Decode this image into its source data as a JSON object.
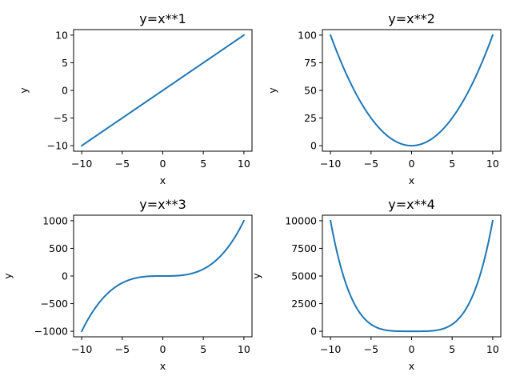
{
  "chart_data": [
    {
      "type": "line",
      "title": "y=x**1",
      "xlabel": "x",
      "ylabel": "y",
      "exponent": 1,
      "x_range": [
        -10,
        10
      ],
      "xlim": [
        -11,
        11
      ],
      "ylim": [
        -11,
        11
      ],
      "xticks": [
        -10,
        -5,
        0,
        5,
        10
      ],
      "xtick_labels": [
        "−10",
        "−5",
        "0",
        "5",
        "10"
      ],
      "yticks": [
        -10,
        -5,
        0,
        5,
        10
      ],
      "ytick_labels": [
        "−10",
        "−5",
        "0",
        "5",
        "10"
      ],
      "series": [
        {
          "color": "#1f77b4",
          "x": [
            -10,
            10
          ],
          "y": [
            -10,
            10
          ]
        }
      ],
      "grid": false,
      "legend": "none"
    },
    {
      "type": "line",
      "title": "y=x**2",
      "xlabel": "x",
      "ylabel": "y",
      "exponent": 2,
      "x_range": [
        -10,
        10
      ],
      "xlim": [
        -11,
        11
      ],
      "ylim": [
        -5,
        105
      ],
      "xticks": [
        -10,
        -5,
        0,
        5,
        10
      ],
      "xtick_labels": [
        "−10",
        "−5",
        "0",
        "5",
        "10"
      ],
      "yticks": [
        0,
        25,
        50,
        75,
        100
      ],
      "ytick_labels": [
        "0",
        "25",
        "50",
        "75",
        "100"
      ],
      "series": [
        {
          "color": "#1f77b4",
          "x": [
            -10,
            -5,
            0,
            5,
            10
          ],
          "y": [
            100,
            25,
            0,
            25,
            100
          ]
        }
      ],
      "grid": false,
      "legend": "none"
    },
    {
      "type": "line",
      "title": "y=x**3",
      "xlabel": "x",
      "ylabel": "y",
      "exponent": 3,
      "x_range": [
        -10,
        10
      ],
      "xlim": [
        -11,
        11
      ],
      "ylim": [
        -1100,
        1100
      ],
      "xticks": [
        -10,
        -5,
        0,
        5,
        10
      ],
      "xtick_labels": [
        "−10",
        "−5",
        "0",
        "5",
        "10"
      ],
      "yticks": [
        -1000,
        -500,
        0,
        500,
        1000
      ],
      "ytick_labels": [
        "−1000",
        "−500",
        "0",
        "500",
        "1000"
      ],
      "series": [
        {
          "color": "#1f77b4",
          "x": [
            -10,
            -5,
            0,
            5,
            10
          ],
          "y": [
            -1000,
            -125,
            0,
            125,
            1000
          ]
        }
      ],
      "grid": false,
      "legend": "none"
    },
    {
      "type": "line",
      "title": "y=x**4",
      "xlabel": "x",
      "ylabel": "y",
      "exponent": 4,
      "x_range": [
        -10,
        10
      ],
      "xlim": [
        -11,
        11
      ],
      "ylim": [
        -500,
        10500
      ],
      "xticks": [
        -10,
        -5,
        0,
        5,
        10
      ],
      "xtick_labels": [
        "−10",
        "−5",
        "0",
        "5",
        "10"
      ],
      "yticks": [
        0,
        2500,
        5000,
        7500,
        10000
      ],
      "ytick_labels": [
        "0",
        "2500",
        "5000",
        "7500",
        "10000"
      ],
      "series": [
        {
          "color": "#1f77b4",
          "x": [
            -10,
            -5,
            0,
            5,
            10
          ],
          "y": [
            10000,
            625,
            0,
            625,
            10000
          ]
        }
      ],
      "grid": false,
      "legend": "none"
    }
  ]
}
